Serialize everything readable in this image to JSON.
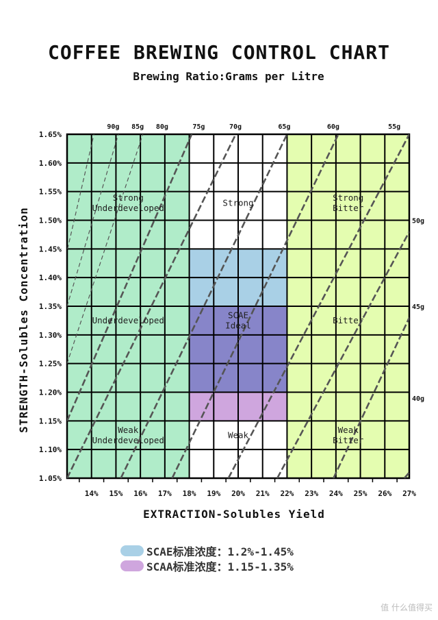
{
  "title": "COFFEE BREWING CONTROL CHART",
  "subtitle": "Brewing Ratio:Grams per Litre",
  "chart_data": {
    "type": "area",
    "title": "COFFEE BREWING CONTROL CHART",
    "subtitle": "Brewing Ratio:Grams per Litre",
    "xlabel": "EXTRACTION-Solubles Yield",
    "ylabel": "STRENGTH-Solubles Concentration",
    "xlim": [
      13,
      27
    ],
    "ylim": [
      1.05,
      1.65
    ],
    "grid": true,
    "x_ticks": [
      14,
      15,
      16,
      17,
      18,
      19,
      20,
      21,
      22,
      23,
      24,
      25,
      26,
      27
    ],
    "x_tick_labels": [
      "14%",
      "15%",
      "16%",
      "17%",
      "18%",
      "19%",
      "20%",
      "21%",
      "22%",
      "23%",
      "24%",
      "25%",
      "26%",
      "27%"
    ],
    "y_ticks": [
      1.05,
      1.1,
      1.15,
      1.2,
      1.25,
      1.3,
      1.35,
      1.4,
      1.45,
      1.5,
      1.55,
      1.6,
      1.65
    ],
    "y_tick_labels": [
      "1.05%",
      "1.10%",
      "1.15%",
      "1.20%",
      "1.25%",
      "1.30%",
      "1.35%",
      "1.40%",
      "1.45%",
      "1.50%",
      "1.55%",
      "1.60%",
      "1.65%"
    ],
    "regions": [
      {
        "x": [
          13,
          18
        ],
        "y": [
          1.05,
          1.65
        ],
        "color": "#b0ecc9"
      },
      {
        "x": [
          22,
          27
        ],
        "y": [
          1.05,
          1.65
        ],
        "color": "#e4fdb0"
      },
      {
        "x": [
          18,
          22
        ],
        "y": [
          1.35,
          1.45
        ],
        "color": "#a9d0e6"
      },
      {
        "x": [
          18,
          22
        ],
        "y": [
          1.2,
          1.35
        ],
        "color": "#8785c9"
      },
      {
        "x": [
          18,
          22
        ],
        "y": [
          1.15,
          1.2
        ],
        "color": "#cfa6de"
      }
    ],
    "zone_labels": [
      {
        "lines": [
          "Strong",
          "Underdeveloped"
        ],
        "x": 15.5,
        "y": 1.53
      },
      {
        "lines": [
          "Strong"
        ],
        "x": 20,
        "y": 1.53
      },
      {
        "lines": [
          "Strong",
          "Bitter"
        ],
        "x": 24.5,
        "y": 1.53
      },
      {
        "lines": [
          "Underdeveloped"
        ],
        "x": 15.5,
        "y": 1.325
      },
      {
        "lines": [
          "SCAE",
          "Ideal"
        ],
        "x": 20,
        "y": 1.325
      },
      {
        "lines": [
          "Bitter"
        ],
        "x": 24.5,
        "y": 1.325
      },
      {
        "lines": [
          "Weak",
          "Underdeveloped"
        ],
        "x": 15.5,
        "y": 1.125
      },
      {
        "lines": [
          "Weak"
        ],
        "x": 20,
        "y": 1.125
      },
      {
        "lines": [
          "Weak",
          "Bitter"
        ],
        "x": 24.5,
        "y": 1.125
      }
    ],
    "ratio_lines": [
      {
        "label": "90g",
        "points": [
          [
            13.02,
            1.45
          ],
          [
            14.1,
            1.65
          ]
        ]
      },
      {
        "label": "85g",
        "points": [
          [
            13.0,
            1.35
          ],
          [
            15.1,
            1.65
          ]
        ]
      },
      {
        "label": "80g",
        "points": [
          [
            13.0,
            1.25
          ],
          [
            16.1,
            1.65
          ]
        ]
      },
      {
        "label": "75g",
        "points": [
          [
            13.0,
            1.15
          ],
          [
            18.1,
            1.65
          ]
        ]
      },
      {
        "label": "70g",
        "points": [
          [
            13.0,
            1.05
          ],
          [
            19.9,
            1.65
          ]
        ]
      },
      {
        "label": "65g",
        "points": [
          [
            15.2,
            1.05
          ],
          [
            22.0,
            1.65
          ]
        ]
      },
      {
        "label": "60g",
        "points": [
          [
            17.3,
            1.05
          ],
          [
            24.1,
            1.65
          ]
        ]
      },
      {
        "label": "55g",
        "points": [
          [
            19.6,
            1.05
          ],
          [
            27.0,
            1.65
          ]
        ]
      },
      {
        "label": "50g",
        "points": [
          [
            21.6,
            1.05
          ],
          [
            27.0,
            1.48
          ]
        ]
      },
      {
        "label": "45g",
        "points": [
          [
            23.9,
            1.05
          ],
          [
            27.0,
            1.33
          ]
        ]
      },
      {
        "label": "40g",
        "points": [
          [
            26.8,
            1.05
          ],
          [
            27.0,
            1.06
          ]
        ]
      }
    ],
    "top_ratio_labels": [
      {
        "label": "90g",
        "x": 15.0
      },
      {
        "label": "85g",
        "x": 16.0
      },
      {
        "label": "80g",
        "x": 17.0
      },
      {
        "label": "75g",
        "x": 18.5
      },
      {
        "label": "70g",
        "x": 20.0
      },
      {
        "label": "65g",
        "x": 22.0
      },
      {
        "label": "60g",
        "x": 24.0
      },
      {
        "label": "55g",
        "x": 26.5
      }
    ],
    "right_ratio_labels": [
      {
        "label": "50g",
        "y": 1.5
      },
      {
        "label": "45g",
        "y": 1.35
      },
      {
        "label": "40g",
        "y": 1.19
      }
    ]
  },
  "legend": [
    {
      "label": "SCAE标准浓度：1.2%-1.45%",
      "color": "#a9d0e6"
    },
    {
      "label": "SCAA标准浓度：1.15-1.35%",
      "color": "#cfa6de"
    }
  ],
  "watermark": "值 什么值得买"
}
